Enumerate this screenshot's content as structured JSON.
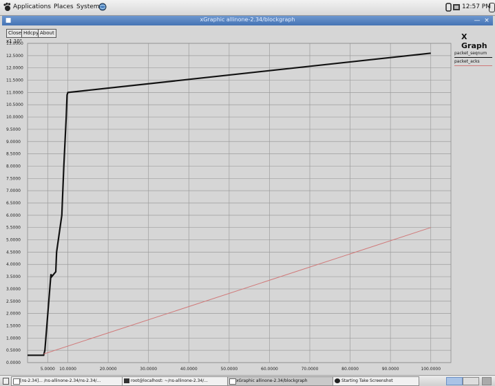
{
  "top_panel": {
    "menus": [
      "Applications",
      "Places",
      "System"
    ],
    "clock": "12:57 PM"
  },
  "window": {
    "title": "xGraphic allinone-2.34/blockgraph"
  },
  "toolbar": {
    "close_label": "Close",
    "hdcpy_label": "Hdcpy",
    "about_label": "About",
    "scale_label": "x1 10³"
  },
  "graph": {
    "title": "X Graph",
    "legend": [
      {
        "name": "packet_seqnum",
        "color": "#111111"
      },
      {
        "name": "packet_acks",
        "color": "#d07878"
      }
    ]
  },
  "chart_data": {
    "type": "line",
    "title": "X Graph",
    "xlabel": "",
    "ylabel": "",
    "xlim": [
      0,
      105000
    ],
    "ylim": [
      0,
      13000
    ],
    "x_ticks": [
      5000,
      10000,
      20000,
      30000,
      40000,
      50000,
      60000,
      70000,
      80000,
      90000,
      100000
    ],
    "x_tick_labels": [
      "5.0000",
      "10.0000",
      "20.0000",
      "30.0000",
      "40.0000",
      "50.0000",
      "60.0000",
      "70.0000",
      "80.0000",
      "90.0000",
      "100.0000"
    ],
    "y_ticks": [
      0,
      500,
      1000,
      1500,
      2000,
      2500,
      3000,
      3500,
      4000,
      4500,
      5000,
      5500,
      6000,
      6500,
      7000,
      7500,
      8000,
      8500,
      9000,
      9500,
      10000,
      10500,
      11000,
      11500,
      12000,
      12500,
      13000
    ],
    "y_tick_labels": [
      "0.0000",
      "0.5000",
      "1.0000",
      "1.5000",
      "2.0000",
      "2.5000",
      "3.0000",
      "3.5000",
      "4.0000",
      "4.5000",
      "5.0000",
      "5.5000",
      "6.0000",
      "6.5000",
      "7.0000",
      "7.5000",
      "8.0000",
      "8.5000",
      "9.0000",
      "9.5000",
      "10.0000",
      "10.5000",
      "11.0000",
      "11.5000",
      "12.0000",
      "12.5000",
      "13.0000"
    ],
    "grid": true,
    "legend_position": "right",
    "series": [
      {
        "name": "packet_seqnum",
        "color": "#111111",
        "x": [
          0,
          4000,
          4300,
          5800,
          6000,
          7000,
          7200,
          8500,
          9000,
          9600,
          9800,
          10000,
          100000
        ],
        "y": [
          300,
          300,
          500,
          3600,
          3500,
          3700,
          4500,
          6000,
          8000,
          10000,
          10900,
          11000,
          12600
        ]
      },
      {
        "name": "packet_acks",
        "color": "#d07878",
        "x": [
          4000,
          100000
        ],
        "y": [
          350,
          5500
        ]
      }
    ]
  },
  "taskbar": {
    "tasks": [
      {
        "label": "[ns-2.34]... /ns-allinone-2.34/ns-2.34/...",
        "active": false
      },
      {
        "label": "root@localhost: ~/ns-allinone-2.34/...",
        "active": false
      },
      {
        "label": "xGraphic allinone-2.34/blockgraph",
        "active": true
      },
      {
        "label": "Starting Take Screenshot",
        "active": false
      }
    ]
  }
}
